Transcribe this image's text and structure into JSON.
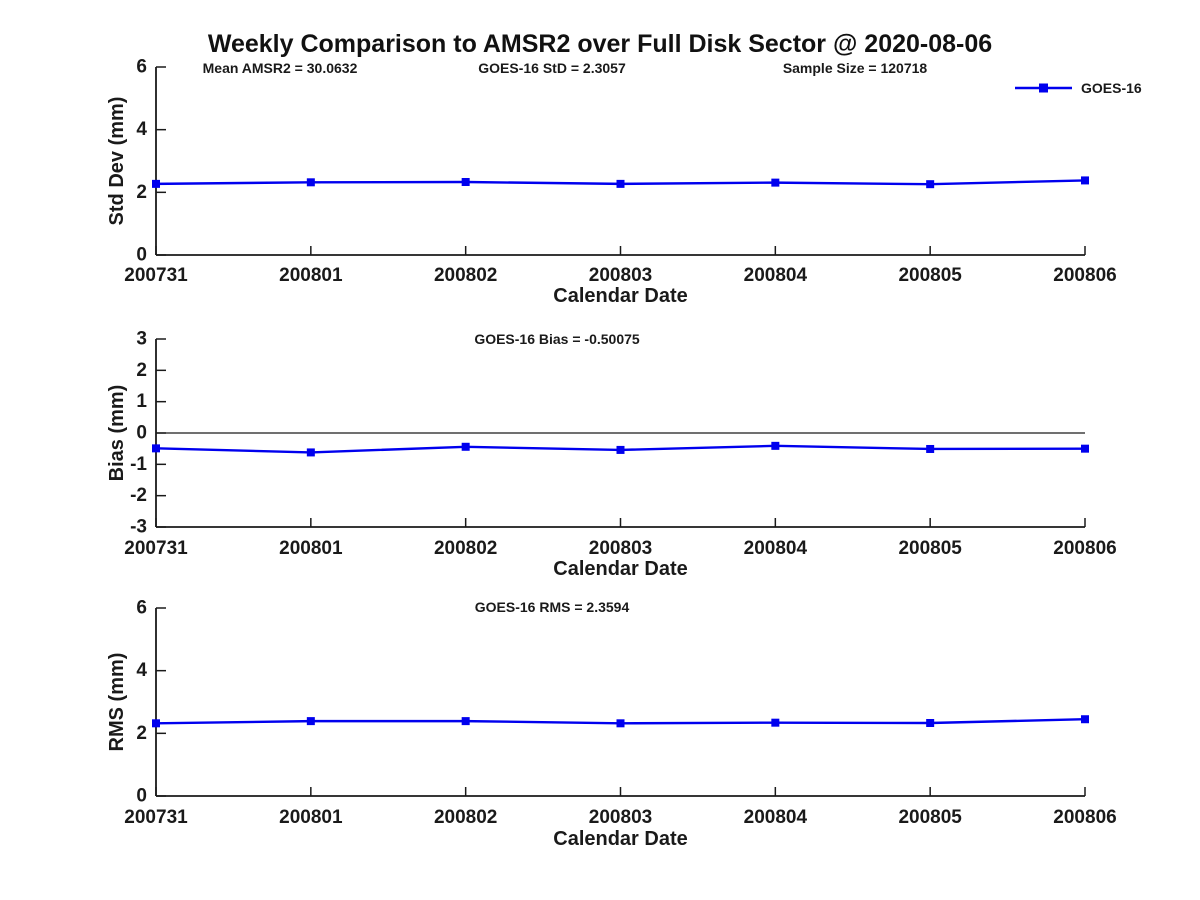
{
  "title": "Weekly Comparison to AMSR2 over Full Disk Sector @ 2020-08-06",
  "colors": {
    "series_blue": "#0000EE",
    "axis_black": "#000000",
    "text_dark": "#1a1a1a"
  },
  "legend": {
    "label": "GOES-16"
  },
  "x_axis": {
    "label": "Calendar Date",
    "categories": [
      "200731",
      "200801",
      "200802",
      "200803",
      "200804",
      "200805",
      "200806"
    ]
  },
  "chart_data": [
    {
      "id": "std-dev",
      "type": "line",
      "ylabel": "Std Dev (mm)",
      "xlabel": "Calendar Date",
      "ylim": [
        0,
        6
      ],
      "yticks": [
        0,
        2,
        4,
        6
      ],
      "grid": false,
      "zero_line": false,
      "categories": [
        "200731",
        "200801",
        "200802",
        "200803",
        "200804",
        "200805",
        "200806"
      ],
      "series": [
        {
          "name": "GOES-16",
          "values": [
            2.27,
            2.32,
            2.33,
            2.27,
            2.31,
            2.26,
            2.38
          ]
        }
      ],
      "annotations": [
        "Mean AMSR2 = 30.0632",
        "GOES-16 StD = 2.3057",
        "Sample Size = 120718"
      ],
      "legend": {
        "label": "GOES-16",
        "position": "top-right-outside"
      }
    },
    {
      "id": "bias",
      "type": "line",
      "ylabel": "Bias (mm)",
      "xlabel": "Calendar Date",
      "ylim": [
        -3,
        3
      ],
      "yticks": [
        -3,
        -2,
        -1,
        0,
        1,
        2,
        3
      ],
      "grid": false,
      "zero_line": true,
      "categories": [
        "200731",
        "200801",
        "200802",
        "200803",
        "200804",
        "200805",
        "200806"
      ],
      "series": [
        {
          "name": "GOES-16",
          "values": [
            -0.49,
            -0.62,
            -0.44,
            -0.54,
            -0.41,
            -0.51,
            -0.5
          ]
        }
      ],
      "annotations": [
        "GOES-16 Bias  = -0.50075"
      ],
      "legend": null
    },
    {
      "id": "rms",
      "type": "line",
      "ylabel": "RMS (mm)",
      "xlabel": "Calendar Date",
      "ylim": [
        0,
        6
      ],
      "yticks": [
        0,
        2,
        4,
        6
      ],
      "grid": false,
      "zero_line": false,
      "categories": [
        "200731",
        "200801",
        "200802",
        "200803",
        "200804",
        "200805",
        "200806"
      ],
      "series": [
        {
          "name": "GOES-16",
          "values": [
            2.32,
            2.39,
            2.39,
            2.32,
            2.34,
            2.33,
            2.45
          ]
        }
      ],
      "annotations": [
        "GOES-16 RMS = 2.3594"
      ],
      "legend": null
    }
  ]
}
